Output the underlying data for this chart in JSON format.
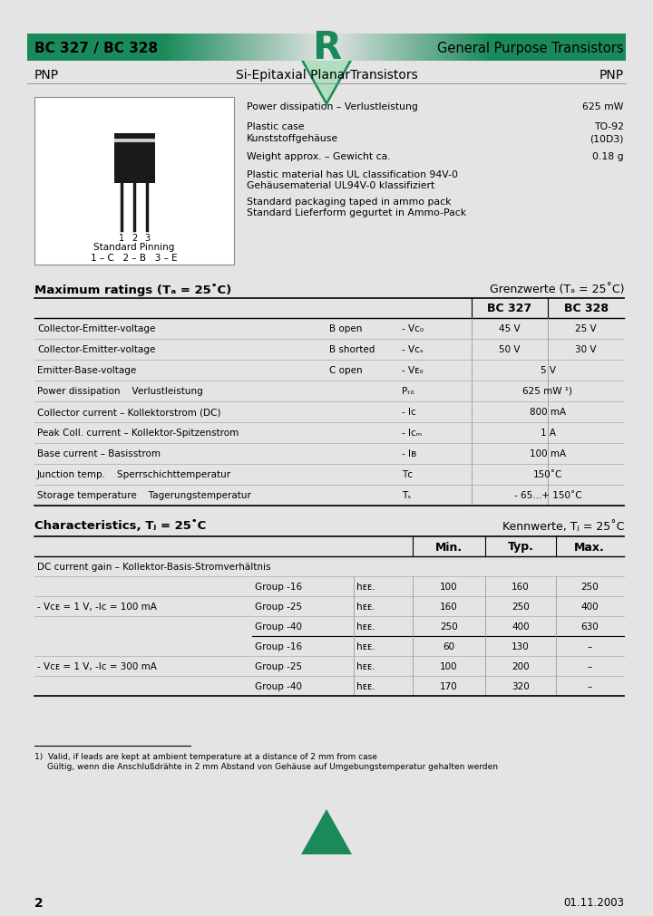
{
  "bg_color": "#e4e4e4",
  "white": "#ffffff",
  "green_dark": "#1a8a5a",
  "header_text_left": "BC 327 / BC 328",
  "header_R": "R",
  "header_text_right": "General Purpose Transistors",
  "subtitle_left": "PNP",
  "subtitle_center": "Si-Epitaxial PlanarTransistors",
  "subtitle_right": "PNP",
  "footnote1": "Valid, if leads are kept at ambient temperature at a distance of 2 mm from case",
  "footnote2": "Gültig, wenn die Anschlußdrähte in 2 mm Abstand von Gehäuse auf Umgebungstemperatur gehalten werden",
  "page_num": "2",
  "date": "01.11.2003"
}
